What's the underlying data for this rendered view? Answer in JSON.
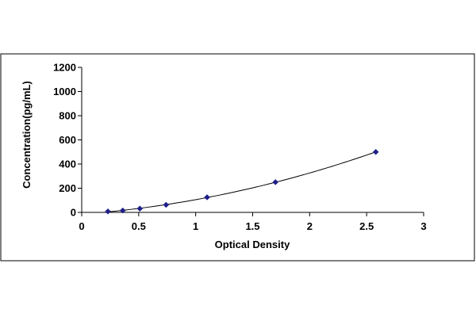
{
  "chart_data": {
    "type": "scatter",
    "title": "",
    "xlabel": "Optical Density",
    "ylabel": "Concentration(pg/mL)",
    "xlim": [
      0,
      3
    ],
    "ylim": [
      0,
      1200
    ],
    "x_ticks": [
      "0",
      "0.5",
      "1",
      "1.5",
      "2",
      "2.5",
      "3"
    ],
    "y_ticks": [
      "0",
      "200",
      "400",
      "600",
      "800",
      "1000",
      "1200"
    ],
    "grid": false,
    "legend": "none",
    "marker": "diamond",
    "colors": {
      "marker": "#1f1f8a",
      "line": "#000000",
      "axis": "#000000"
    },
    "series": [
      {
        "x": [
          0.23,
          0.36,
          0.51,
          0.74,
          1.1,
          1.7,
          2.58
        ],
        "y": [
          7.8,
          15.6,
          31.2,
          62.5,
          125,
          250,
          500
        ]
      }
    ]
  }
}
